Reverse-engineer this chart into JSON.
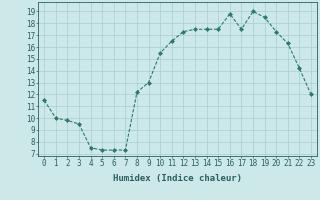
{
  "x": [
    0,
    1,
    2,
    3,
    4,
    5,
    6,
    7,
    8,
    9,
    10,
    11,
    12,
    13,
    14,
    15,
    16,
    17,
    18,
    19,
    20,
    21,
    22,
    23
  ],
  "y": [
    11.5,
    10.0,
    9.8,
    9.5,
    7.5,
    7.3,
    7.3,
    7.3,
    12.2,
    13.0,
    15.5,
    16.5,
    17.3,
    17.5,
    17.5,
    17.5,
    18.8,
    17.5,
    19.0,
    18.5,
    17.3,
    16.3,
    14.2,
    12.0
  ],
  "line_color": "#2a7a6a",
  "marker": "D",
  "marker_size": 2.0,
  "background_color": "#cce8e8",
  "grid_color": "#aacece",
  "xlabel": "Humidex (Indice chaleur)",
  "xlim": [
    -0.5,
    23.5
  ],
  "ylim": [
    6.8,
    19.8
  ],
  "yticks": [
    7,
    8,
    9,
    10,
    11,
    12,
    13,
    14,
    15,
    16,
    17,
    18,
    19
  ],
  "xticks": [
    0,
    1,
    2,
    3,
    4,
    5,
    6,
    7,
    8,
    9,
    10,
    11,
    12,
    13,
    14,
    15,
    16,
    17,
    18,
    19,
    20,
    21,
    22,
    23
  ],
  "tick_color": "#2a6060",
  "axis_color": "#2a6060",
  "label_fontsize": 6.5,
  "tick_fontsize": 5.5
}
